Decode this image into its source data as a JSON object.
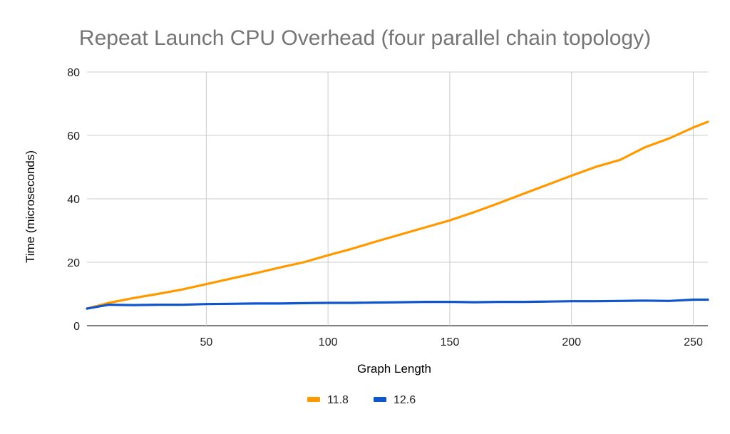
{
  "chart_data": {
    "type": "line",
    "title": "Repeat Launch CPU Overhead (four parallel chain topology)",
    "xlabel": "Graph Length",
    "ylabel": "Time (microseconds)",
    "xlim": [
      1,
      256
    ],
    "ylim": [
      0,
      80
    ],
    "x_ticks": [
      50,
      100,
      150,
      200,
      250
    ],
    "y_ticks": [
      0,
      20,
      40,
      60,
      80
    ],
    "grid": true,
    "legend": "bottom",
    "x": [
      1,
      10,
      20,
      30,
      40,
      50,
      60,
      70,
      80,
      90,
      100,
      110,
      120,
      130,
      140,
      150,
      160,
      170,
      180,
      190,
      200,
      210,
      220,
      230,
      240,
      250,
      256
    ],
    "series": [
      {
        "name": "11.8",
        "color": "#ff9900",
        "values": [
          5.4,
          7.2,
          8.7,
          10.0,
          11.4,
          13.1,
          14.8,
          16.5,
          18.3,
          20.0,
          22.2,
          24.3,
          26.6,
          28.8,
          31.0,
          33.2,
          35.8,
          38.6,
          41.5,
          44.4,
          47.3,
          50.1,
          52.3,
          56.2,
          59.0,
          62.5,
          64.3
        ]
      },
      {
        "name": "12.6",
        "color": "#1155cc",
        "values": [
          5.4,
          6.6,
          6.5,
          6.6,
          6.6,
          6.8,
          6.9,
          7.0,
          7.0,
          7.1,
          7.2,
          7.2,
          7.3,
          7.4,
          7.5,
          7.5,
          7.4,
          7.5,
          7.5,
          7.6,
          7.7,
          7.7,
          7.8,
          7.9,
          7.8,
          8.2,
          8.2
        ]
      }
    ]
  }
}
